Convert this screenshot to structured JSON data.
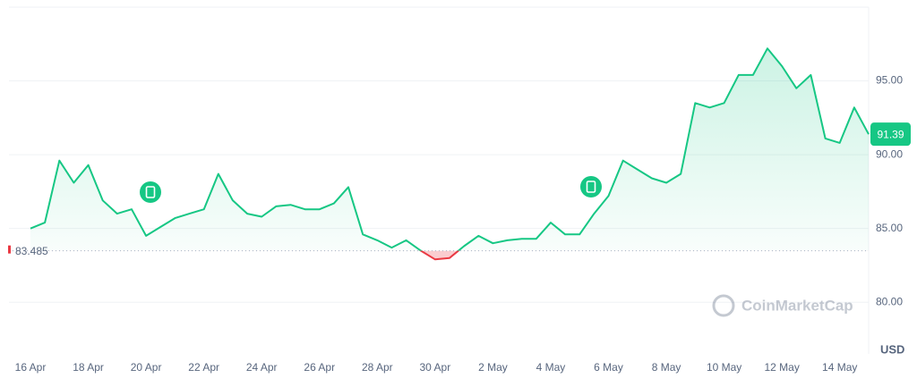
{
  "chart_data": {
    "type": "line",
    "categories": [
      "16 Apr",
      null,
      null,
      null,
      "18 Apr",
      null,
      null,
      null,
      "20 Apr",
      null,
      null,
      null,
      "22 Apr",
      null,
      null,
      null,
      "24 Apr",
      null,
      null,
      null,
      "26 Apr",
      null,
      null,
      null,
      "28 Apr",
      null,
      null,
      null,
      "30 Apr",
      null,
      null,
      null,
      "2 May",
      null,
      null,
      null,
      "4 May",
      null,
      null,
      null,
      "6 May",
      null,
      null,
      null,
      "8 May",
      null,
      null,
      null,
      "10 May",
      null,
      null,
      null,
      "12 May",
      null,
      null,
      null,
      "14 May",
      null,
      null
    ],
    "series": [
      {
        "color": "#16c784",
        "values": [
          85.0,
          85.4,
          89.6,
          88.1,
          89.3,
          86.9,
          86.0,
          86.3,
          84.5,
          85.1,
          85.7,
          86.0,
          86.3,
          88.7,
          86.9,
          86.0,
          85.8,
          86.5,
          86.6,
          86.3,
          86.3,
          86.7,
          87.8,
          84.6,
          84.2,
          83.7,
          84.2,
          83.5,
          82.9,
          83.0,
          83.8,
          84.5,
          84.0,
          84.2,
          84.3,
          84.3,
          85.4,
          84.6,
          84.6,
          86.0,
          87.2,
          89.6,
          89.0,
          88.4,
          88.1,
          88.7,
          93.5,
          93.2,
          93.5,
          95.4,
          95.4,
          97.2,
          96.0,
          94.5,
          95.4,
          91.1,
          90.8,
          93.2,
          91.39
        ]
      }
    ],
    "below_color": "#ea3943",
    "baseline": 83.485,
    "price_tag": 91.39,
    "ylim": [
      76.5,
      100
    ],
    "yticks": [
      {
        "value": 80,
        "label": "80.00"
      },
      {
        "value": 85,
        "label": "85.00"
      },
      {
        "value": 90,
        "label": "90.00"
      },
      {
        "value": 95,
        "label": "95.00"
      }
    ],
    "y_axis_label": "USD",
    "grid": true,
    "watermark": "CoinMarketCap"
  }
}
